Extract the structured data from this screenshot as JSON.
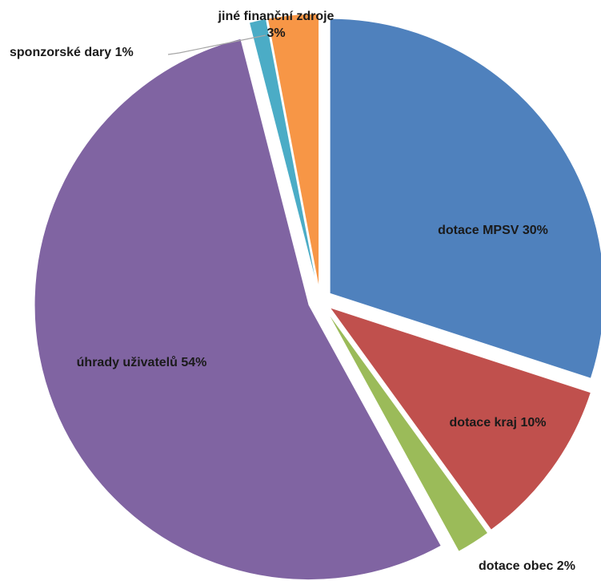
{
  "chart_data": {
    "type": "pie",
    "title": "",
    "slices": [
      {
        "label": "dotace MPSV",
        "value": 30,
        "percent_label": "30%",
        "color": "#4F81BD"
      },
      {
        "label": "dotace kraj",
        "value": 10,
        "percent_label": "10%",
        "color": "#C0504D"
      },
      {
        "label": "dotace obec",
        "value": 2,
        "percent_label": "2%",
        "color": "#9BBB59"
      },
      {
        "label": "úhrady uživatelů",
        "value": 54,
        "percent_label": "54%",
        "color": "#8064A2"
      },
      {
        "label": "sponzorské dary",
        "value": 1,
        "percent_label": "1%",
        "color": "#4BACC6"
      },
      {
        "label": "jiné finanční zdroje",
        "value": 3,
        "percent_label": "3%",
        "color": "#F79646"
      }
    ],
    "exploded": true,
    "legend": "none"
  }
}
